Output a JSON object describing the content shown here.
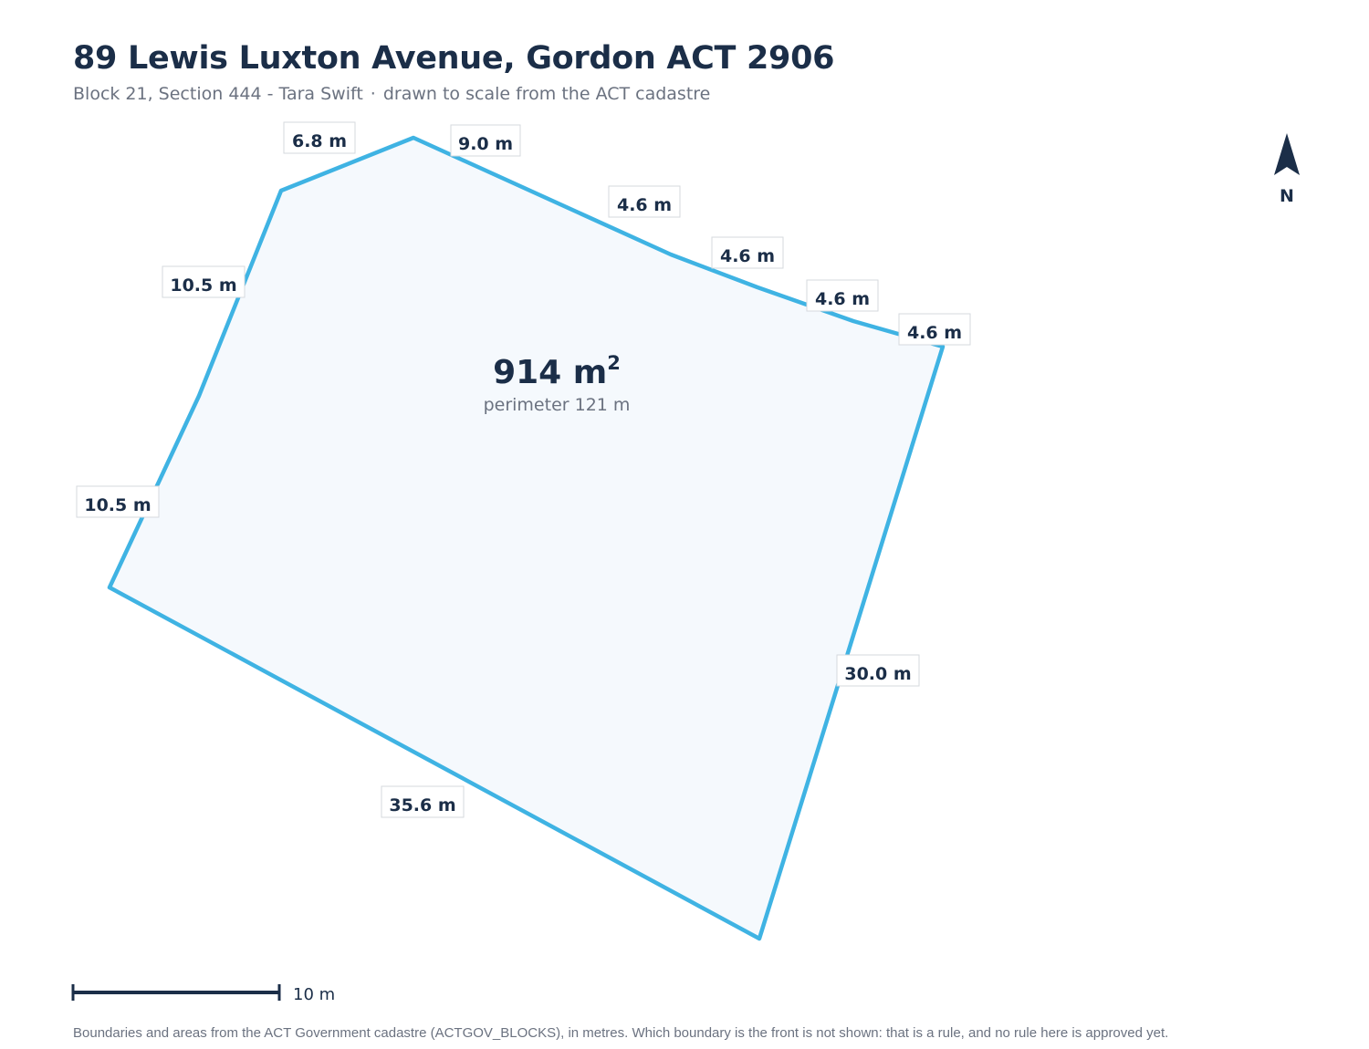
{
  "title": "89 Lewis Luxton Avenue, Gordon ACT 2906",
  "subtitle": {
    "block": "Block 21, Section 444 - Tara Swift",
    "separator": "·",
    "note": "drawn to scale from the ACT cadastre"
  },
  "parcel": {
    "area_value": "914 m",
    "area_superscript": "2",
    "perimeter": "perimeter 121 m",
    "boundary_color": "#3fb3e3",
    "fill_color": "#f5f9fd",
    "edges": [
      {
        "label": "6.8 m"
      },
      {
        "label": "9.0 m"
      },
      {
        "label": "4.6 m"
      },
      {
        "label": "4.6 m"
      },
      {
        "label": "4.6 m"
      },
      {
        "label": "4.6 m"
      },
      {
        "label": "30.0 m"
      },
      {
        "label": "35.6 m"
      },
      {
        "label": "10.5 m"
      },
      {
        "label": "10.5 m"
      }
    ]
  },
  "north": {
    "label": "N",
    "icon": "north-arrow-icon"
  },
  "scale_bar": {
    "label": "10 m"
  },
  "footnote": "Boundaries and areas from the ACT Government cadastre (ACTGOV_BLOCKS), in metres. Which boundary is the front is not shown: that is a rule, and no rule here is approved yet."
}
